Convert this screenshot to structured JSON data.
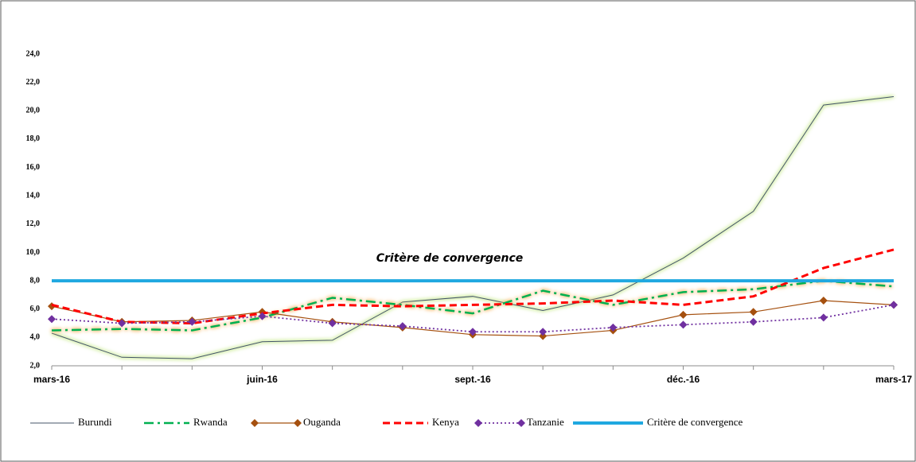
{
  "chart_data": {
    "type": "line",
    "annotation": "Critère de convergence",
    "categories": [
      "mars-16",
      null,
      null,
      "juin-16",
      null,
      null,
      "sept.-16",
      null,
      null,
      "déc.-16",
      null,
      null,
      "mars-17"
    ],
    "ylim": [
      2,
      24
    ],
    "yticks": [
      {
        "value": 2,
        "label": "2,0"
      },
      {
        "value": 4,
        "label": "4,0"
      },
      {
        "value": 6,
        "label": "6,0"
      },
      {
        "value": 8,
        "label": "8,0"
      },
      {
        "value": 10,
        "label": "10,0"
      },
      {
        "value": 12,
        "label": "12,0"
      },
      {
        "value": 14,
        "label": "14,0"
      },
      {
        "value": 16,
        "label": "16,0"
      },
      {
        "value": 18,
        "label": "18,0"
      },
      {
        "value": 20,
        "label": "20,0"
      },
      {
        "value": 22,
        "label": "22,0"
      },
      {
        "value": 24,
        "label": "24,0"
      }
    ],
    "series": [
      {
        "name": "Burundi",
        "color": "#44546a",
        "values": [
          4.3,
          2.6,
          2.5,
          3.7,
          3.8,
          6.5,
          6.9,
          5.9,
          7.0,
          9.6,
          12.9,
          20.4,
          21.0
        ]
      },
      {
        "name": "Rwanda",
        "color": "#00b050",
        "values": [
          4.5,
          4.6,
          4.5,
          5.4,
          6.8,
          6.3,
          5.7,
          7.3,
          6.3,
          7.2,
          7.4,
          8.0,
          7.6
        ]
      },
      {
        "name": "Ouganda",
        "color": "#a5500f",
        "marker": "diamond",
        "values": [
          6.2,
          5.1,
          5.2,
          5.8,
          5.1,
          4.7,
          4.2,
          4.1,
          4.5,
          5.6,
          5.8,
          6.6,
          6.3
        ]
      },
      {
        "name": "Kenya",
        "color": "#ff0000",
        "values": [
          6.3,
          5.1,
          5.0,
          5.7,
          6.3,
          6.2,
          6.3,
          6.4,
          6.6,
          6.3,
          6.9,
          8.9,
          10.2
        ]
      },
      {
        "name": "Tanzanie",
        "color": "#7030a0",
        "marker": "diamond",
        "values": [
          5.3,
          5.0,
          5.1,
          5.5,
          5.0,
          4.8,
          4.4,
          4.4,
          4.7,
          4.9,
          5.1,
          5.4,
          6.3
        ]
      },
      {
        "name": "Critère de convergence",
        "color": "#1fa8e0",
        "values": [
          8,
          8,
          8,
          8,
          8,
          8,
          8,
          8,
          8,
          8,
          8,
          8,
          8
        ]
      }
    ]
  }
}
